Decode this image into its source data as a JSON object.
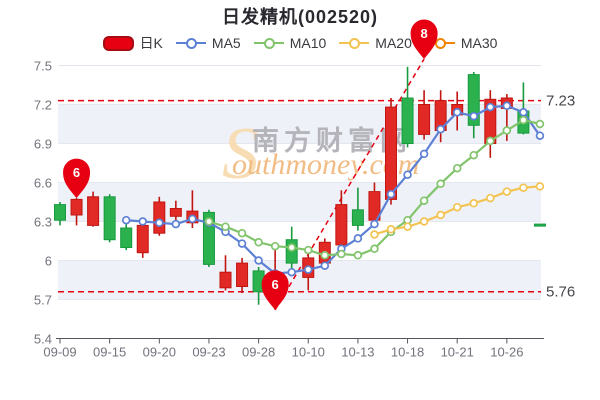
{
  "title": "日发精机(002520)",
  "legend": {
    "items": [
      {
        "label": "日K",
        "marker": "pill",
        "color": "#e60012",
        "border": "#a50b11"
      },
      {
        "label": "MA5",
        "marker": "line",
        "color": "#5d80d4"
      },
      {
        "label": "MA10",
        "marker": "line",
        "color": "#82c46c"
      },
      {
        "label": "MA20",
        "marker": "line",
        "color": "#f3c351"
      },
      {
        "label": "MA30",
        "marker": "line",
        "color": "#f08300"
      }
    ]
  },
  "watermark": {
    "swoosh_letter": "S",
    "cn_text": "南方财富网",
    "en_text": "outhmoney.com"
  },
  "chart_data": {
    "type": "candlestick",
    "title": "日发精机(002520)",
    "ylim": [
      5.4,
      7.5
    ],
    "y_ticks": [
      "7.5",
      "7.2",
      "6.9",
      "6.6",
      "6.3",
      "6",
      "5.7",
      "5.4"
    ],
    "x_tick_labels": [
      "09-09",
      "09-15",
      "09-20",
      "09-23",
      "09-28",
      "10-10",
      "10-13",
      "10-18",
      "10-21",
      "10-26"
    ],
    "x_tick_indices": [
      0,
      3,
      6,
      9,
      12,
      15,
      18,
      21,
      24,
      27
    ],
    "categories": [
      "09-09",
      "09-13",
      "09-14",
      "09-15",
      "09-16",
      "09-19",
      "09-20",
      "09-21",
      "09-22",
      "09-23",
      "09-26",
      "09-27",
      "09-28",
      "09-29",
      "09-30",
      "10-10",
      "10-11",
      "10-12",
      "10-13",
      "10-14",
      "10-17",
      "10-18",
      "10-19",
      "10-20",
      "10-21",
      "10-24",
      "10-25",
      "10-26",
      "10-27",
      "10-28"
    ],
    "candles": [
      {
        "date": "09-09",
        "o": 6.43,
        "h": 6.45,
        "l": 6.27,
        "c": 6.31,
        "up": false
      },
      {
        "date": "09-13",
        "o": 6.35,
        "h": 6.48,
        "l": 6.27,
        "c": 6.47,
        "up": true
      },
      {
        "date": "09-14",
        "o": 6.27,
        "h": 6.53,
        "l": 6.26,
        "c": 6.49,
        "up": true
      },
      {
        "date": "09-15",
        "o": 6.49,
        "h": 6.51,
        "l": 6.14,
        "c": 6.16,
        "up": false
      },
      {
        "date": "09-16",
        "o": 6.25,
        "h": 6.29,
        "l": 6.08,
        "c": 6.1,
        "up": false
      },
      {
        "date": "09-19",
        "o": 6.06,
        "h": 6.31,
        "l": 6.02,
        "c": 6.27,
        "up": true
      },
      {
        "date": "09-20",
        "o": 6.21,
        "h": 6.49,
        "l": 6.19,
        "c": 6.45,
        "up": true
      },
      {
        "date": "09-21",
        "o": 6.34,
        "h": 6.46,
        "l": 6.27,
        "c": 6.4,
        "up": true
      },
      {
        "date": "09-22",
        "o": 6.29,
        "h": 6.54,
        "l": 6.25,
        "c": 6.38,
        "up": true
      },
      {
        "date": "09-23",
        "o": 6.37,
        "h": 6.39,
        "l": 5.95,
        "c": 5.97,
        "up": false
      },
      {
        "date": "09-26",
        "o": 5.79,
        "h": 6.04,
        "l": 5.77,
        "c": 5.91,
        "up": true
      },
      {
        "date": "09-27",
        "o": 5.8,
        "h": 6.02,
        "l": 5.75,
        "c": 5.98,
        "up": true
      },
      {
        "date": "09-28",
        "o": 5.92,
        "h": 5.95,
        "l": 5.66,
        "c": 5.76,
        "up": false
      },
      {
        "date": "09-29",
        "o": 5.76,
        "h": 6.1,
        "l": 5.62,
        "c": 5.9,
        "up": true
      },
      {
        "date": "09-30",
        "o": 6.16,
        "h": 6.26,
        "l": 5.94,
        "c": 5.98,
        "up": false
      },
      {
        "date": "10-10",
        "o": 5.87,
        "h": 6.06,
        "l": 5.77,
        "c": 6.02,
        "up": true
      },
      {
        "date": "10-11",
        "o": 5.98,
        "h": 6.17,
        "l": 5.94,
        "c": 6.14,
        "up": true
      },
      {
        "date": "10-12",
        "o": 6.12,
        "h": 6.54,
        "l": 6.08,
        "c": 6.43,
        "up": true
      },
      {
        "date": "10-13",
        "o": 6.39,
        "h": 6.56,
        "l": 6.23,
        "c": 6.27,
        "up": false
      },
      {
        "date": "10-14",
        "o": 6.31,
        "h": 6.6,
        "l": 6.27,
        "c": 6.53,
        "up": true
      },
      {
        "date": "10-17",
        "o": 6.47,
        "h": 7.25,
        "l": 6.43,
        "c": 7.18,
        "up": true
      },
      {
        "date": "10-18",
        "o": 7.25,
        "h": 7.49,
        "l": 6.87,
        "c": 6.9,
        "up": false
      },
      {
        "date": "10-19",
        "o": 6.97,
        "h": 7.31,
        "l": 6.93,
        "c": 7.2,
        "up": true
      },
      {
        "date": "10-20",
        "o": 7.0,
        "h": 7.31,
        "l": 6.91,
        "c": 7.23,
        "up": true
      },
      {
        "date": "10-21",
        "o": 7.12,
        "h": 7.3,
        "l": 7.0,
        "c": 7.2,
        "up": true
      },
      {
        "date": "10-24",
        "o": 7.43,
        "h": 7.45,
        "l": 6.94,
        "c": 7.04,
        "up": false
      },
      {
        "date": "10-25",
        "o": 6.9,
        "h": 7.31,
        "l": 6.79,
        "c": 7.24,
        "up": true
      },
      {
        "date": "10-26",
        "o": 7.17,
        "h": 7.28,
        "l": 6.92,
        "c": 7.25,
        "up": true
      },
      {
        "date": "10-27",
        "o": 7.15,
        "h": 7.37,
        "l": 6.97,
        "c": 6.98,
        "up": false
      },
      {
        "date": "10-28",
        "o": 6.28,
        "h": 6.28,
        "l": 6.28,
        "c": 6.28,
        "up": false
      }
    ],
    "series": [
      {
        "name": "MA5",
        "color": "#5d80d4",
        "values": [
          null,
          null,
          null,
          null,
          6.31,
          6.3,
          6.29,
          6.28,
          6.32,
          6.29,
          6.22,
          6.13,
          6.0,
          5.9,
          5.91,
          5.93,
          5.96,
          6.09,
          6.17,
          6.28,
          6.51,
          6.66,
          6.82,
          7.01,
          7.14,
          7.11,
          7.18,
          7.19,
          7.14,
          6.96
        ]
      },
      {
        "name": "MA10",
        "color": "#82c46c",
        "values": [
          null,
          null,
          null,
          null,
          null,
          null,
          null,
          null,
          null,
          6.3,
          6.26,
          6.21,
          6.14,
          6.11,
          6.1,
          6.08,
          6.04,
          6.05,
          6.04,
          6.09,
          6.22,
          6.31,
          6.46,
          6.59,
          6.71,
          6.81,
          6.92,
          7.0,
          7.08,
          7.05
        ]
      },
      {
        "name": "MA20",
        "color": "#f3c351",
        "values": [
          null,
          null,
          null,
          null,
          null,
          null,
          null,
          null,
          null,
          null,
          null,
          null,
          null,
          null,
          null,
          null,
          null,
          null,
          null,
          6.2,
          6.24,
          6.26,
          6.3,
          6.35,
          6.41,
          6.44,
          6.48,
          6.53,
          6.56,
          6.57
        ]
      },
      {
        "name": "MA30",
        "color": "#f08300",
        "values": [
          null,
          null,
          null,
          null,
          null,
          null,
          null,
          null,
          null,
          null,
          null,
          null,
          null,
          null,
          null,
          null,
          null,
          null,
          null,
          null,
          null,
          null,
          null,
          null,
          null,
          null,
          null,
          null,
          null,
          null
        ]
      }
    ],
    "annotations": {
      "hlines": [
        {
          "price": 7.23,
          "label": "7.23"
        },
        {
          "price": 5.76,
          "label": "5.76"
        }
      ],
      "trendline": {
        "from_index": 13,
        "from_price": 5.62,
        "to_index": 22,
        "to_price": 7.55
      },
      "balloons": [
        {
          "label": "6",
          "index": 1,
          "tip_price": 6.48
        },
        {
          "label": "6",
          "index": 13,
          "tip_price": 5.62
        },
        {
          "label": "8",
          "index": 22,
          "tip_price": 7.55
        }
      ]
    },
    "colors": {
      "up_fill": "#e12a25",
      "up_stroke": "#c01511",
      "down_fill": "#2bb24f",
      "down_stroke": "#179a3e",
      "band": "#eef1f8",
      "grid": "#e4e7ef",
      "axis": "#55555e",
      "tick_label": "#73737d",
      "dashed": "#e60012",
      "hline_label": "#46464e",
      "balloon": "#e60012",
      "balloon_text": "#ffffff",
      "watermark_swoosh": "#f8dcb4",
      "watermark_cn": "#b4b4ba",
      "watermark_en": "#f2bc85"
    }
  }
}
